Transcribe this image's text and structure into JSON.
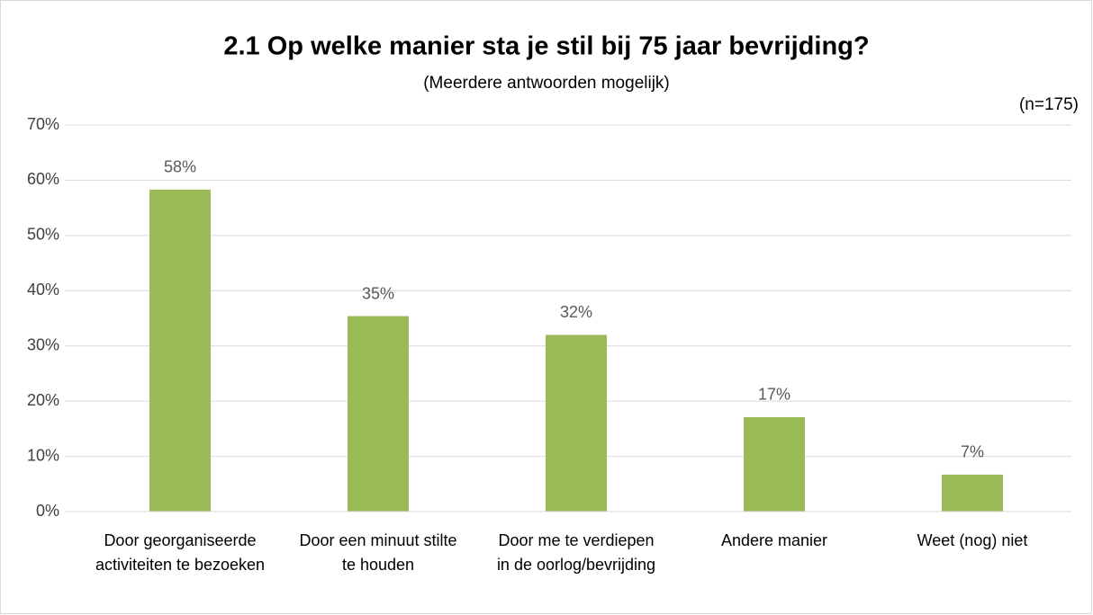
{
  "chart_data": {
    "type": "bar",
    "title": "2.1 Op welke manier sta je stil bij 75 jaar bevrijding?",
    "subtitle": "(Meerdere antwoorden mogelijk)",
    "annotation": "(n=175)",
    "categories": [
      "Door georganiseerde activiteiten te bezoeken",
      "Door een minuut stilte te houden",
      "Door me te verdiepen in de oorlog/bevrijding",
      "Andere manier",
      "Weet (nog) niet"
    ],
    "values": [
      58.3,
      35.4,
      32.0,
      17.1,
      6.7
    ],
    "value_labels": [
      "58%",
      "35%",
      "32%",
      "17%",
      "7%"
    ],
    "color": "#9bbb59",
    "ylim": [
      0,
      70
    ],
    "yticks": [
      {
        "value": 0,
        "label": "0%"
      },
      {
        "value": 10,
        "label": "10%"
      },
      {
        "value": 20,
        "label": "20%"
      },
      {
        "value": 30,
        "label": "30%"
      },
      {
        "value": 40,
        "label": "40%"
      },
      {
        "value": 50,
        "label": "50%"
      },
      {
        "value": 60,
        "label": "60%"
      },
      {
        "value": 70,
        "label": "70%"
      }
    ],
    "grid": true
  }
}
